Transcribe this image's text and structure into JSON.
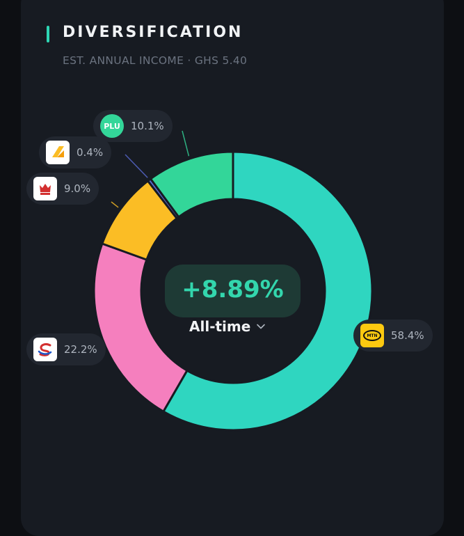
{
  "header": {
    "title": "DIVERSIFICATION",
    "subtitle": "EST. ANNUAL INCOME · GHS 5.40"
  },
  "center": {
    "value": "+8.89%",
    "period_label": "All-time",
    "dropdown_icon": "chevron-down-icon"
  },
  "chart_data": {
    "type": "pie",
    "donut": true,
    "slices": [
      {
        "logo": "MTN",
        "label": "58.4%",
        "value": 58.4,
        "color": "#2fd6c0"
      },
      {
        "logo": "",
        "label": "22.2%",
        "value": 22.2,
        "color": "#f57fbe"
      },
      {
        "logo": "",
        "label": "9.0%",
        "value": 9.0,
        "color": "#fbbd25"
      },
      {
        "logo": "",
        "label": "0.4%",
        "value": 0.4,
        "color": "#5a6bd6"
      },
      {
        "logo": "PLU",
        "label": "10.1%",
        "value": 10.1,
        "color": "#33d699"
      }
    ]
  }
}
